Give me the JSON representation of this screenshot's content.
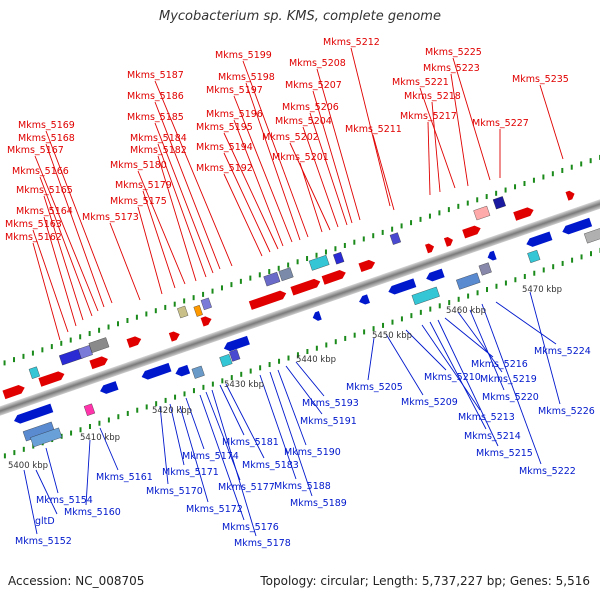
{
  "title": "Mycobacterium sp. KMS, complete genome",
  "footer": {
    "accession": "Accession: NC_008705",
    "stats": "Topology: circular; Length: 5,737,227 bp; Genes: 5,516"
  },
  "colors": {
    "forward": "#e00000",
    "reverse": "#0018cc",
    "backbone": "#9a9a9a",
    "tick": "#1a8a1a"
  },
  "kbp_labels": [
    "5400 kbp",
    "5410 kbp",
    "5420 kbp",
    "5430 kbp",
    "5440 kbp",
    "5450 kbp",
    "5460 kbp",
    "5470 kbp"
  ],
  "top_genes": [
    "Mkms_5162",
    "Mkms_5163",
    "Mkms_5164",
    "Mkms_5165",
    "Mkms_5166",
    "Mkms_5167",
    "Mkms_5168",
    "Mkms_5169",
    "Mkms_5173",
    "Mkms_5175",
    "Mkms_5179",
    "Mkms_5180",
    "Mkms_5182",
    "Mkms_5184",
    "Mkms_5185",
    "Mkms_5186",
    "Mkms_5187",
    "Mkms_5192",
    "Mkms_5194",
    "Mkms_5195",
    "Mkms_5196",
    "Mkms_5197",
    "Mkms_5198",
    "Mkms_5199",
    "Mkms_5201",
    "Mkms_5202",
    "Mkms_5204",
    "Mkms_5206",
    "Mkms_5207",
    "Mkms_5208",
    "Mkms_5211",
    "Mkms_5212",
    "Mkms_5217",
    "Mkms_5218",
    "Mkms_5221",
    "Mkms_5223",
    "Mkms_5225",
    "Mkms_5227",
    "Mkms_5235"
  ],
  "bottom_genes": [
    "Mkms_5152",
    "gltD",
    "Mkms_5154",
    "Mkms_5160",
    "Mkms_5161",
    "Mkms_5170",
    "Mkms_5171",
    "Mkms_5172",
    "Mkms_5174",
    "Mkms_5176",
    "Mkms_5177",
    "Mkms_5178",
    "Mkms_5181",
    "Mkms_5183",
    "Mkms_5188",
    "Mkms_5189",
    "Mkms_5190",
    "Mkms_5191",
    "Mkms_5193",
    "Mkms_5205",
    "Mkms_5209",
    "Mkms_5210",
    "Mkms_5213",
    "Mkms_5214",
    "Mkms_5215",
    "Mkms_5216",
    "Mkms_5219",
    "Mkms_5220",
    "Mkms_5222",
    "Mkms_5224",
    "Mkms_5226"
  ]
}
